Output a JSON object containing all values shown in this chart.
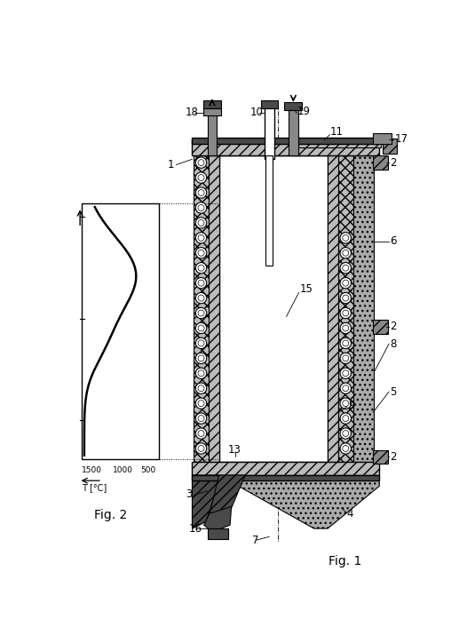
{
  "fig_width": 5.35,
  "fig_height": 7.24,
  "dpi": 100,
  "colors": {
    "white": "#ffffff",
    "bg": "#ffffff",
    "black": "#000000",
    "dark_gray": "#4a4a4a",
    "med_gray": "#888888",
    "light_gray": "#bbbbbb",
    "stipple_gray": "#aaaaaa",
    "hatch_gray": "#777777"
  },
  "fig1_label": "Fig. 1",
  "fig2_label": "Fig. 2",
  "axis_label": "T [°C]"
}
